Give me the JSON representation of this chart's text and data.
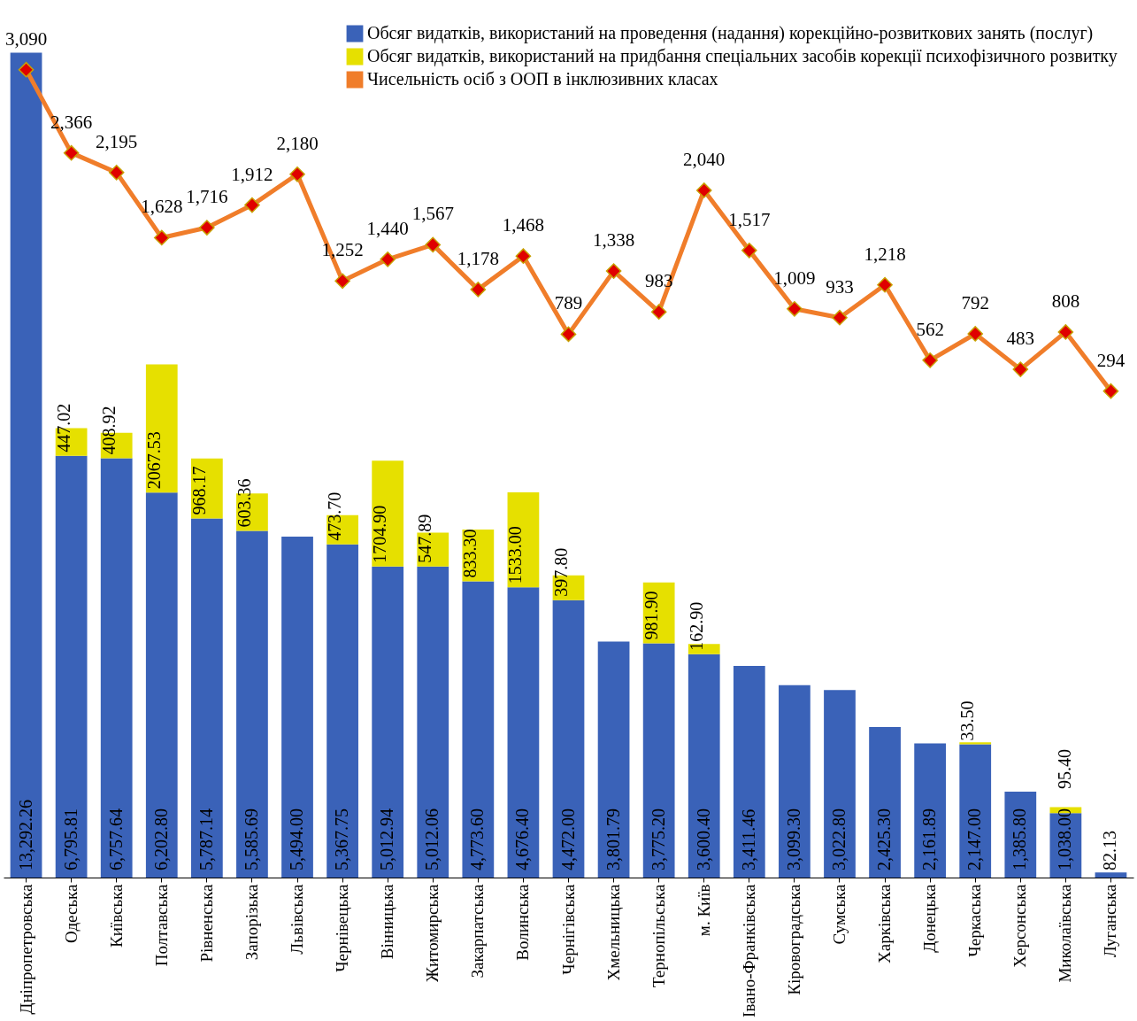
{
  "chart_data": {
    "type": "bar",
    "stacked": true,
    "tick_labels": "x",
    "legend": "top right",
    "marker": "diamond",
    "grid": false,
    "categories": [
      "Дніпропетровська",
      "Одеська",
      "Київська",
      "Полтавська",
      "Рівненська",
      "Запорізька",
      "Львівська",
      "Чернівецька",
      "Вінницька",
      "Житомирська",
      "Закарпатська",
      "Волинська",
      "Чернігівська",
      "Хмельницька",
      "Тернопільська",
      "м. Київ",
      "Івано-Франківська",
      "Кіровоградська",
      "Сумська",
      "Харківська",
      "Донецька",
      "Черкаська",
      "Херсонська",
      "Миколаївська",
      "Луганська"
    ],
    "series": [
      {
        "name": "Обсяг видатків, використаний на проведення (надання) корекційно-розвиткових занять (послуг)",
        "color": "#3a62b8",
        "values": [
          13292.26,
          6795.81,
          6757.64,
          6202.8,
          5787.14,
          5585.69,
          5494.0,
          5367.75,
          5012.94,
          5012.06,
          4773.6,
          4676.4,
          4472.0,
          3801.79,
          3775.2,
          3600.4,
          3411.46,
          3099.3,
          3022.8,
          2425.3,
          2161.89,
          2147.0,
          1385.8,
          1038.0,
          82.13
        ],
        "value_labels": [
          "13,292.26",
          "6,795.81",
          "6,757.64",
          "6,202.80",
          "5,787.14",
          "5,585.69",
          "5,494.00",
          "5,367.75",
          "5,012.94",
          "5,012.06",
          "4,773.60",
          "4,676.40",
          "4,472.00",
          "3,801.79",
          "3,775.20",
          "3,600.40",
          "3,411.46",
          "3,099.30",
          "3,022.80",
          "2,425.30",
          "2,161.89",
          "2,147.00",
          "1,385.80",
          "1,038.00",
          "82.13"
        ]
      },
      {
        "name": "Обсяг видатків, використаний на придбання спеціальних засобів корекції психофізичного розвитку",
        "color": "#e6e000",
        "values": [
          null,
          447.02,
          408.92,
          2067.53,
          968.17,
          603.36,
          null,
          473.7,
          1704.9,
          547.89,
          833.3,
          1533.0,
          397.8,
          null,
          981.9,
          162.9,
          null,
          null,
          null,
          null,
          null,
          33.5,
          null,
          95.4,
          null
        ],
        "value_labels": [
          null,
          "447.02",
          "408.92",
          "2067.53",
          "968.17",
          "603.36",
          null,
          "473.70",
          "1704.90",
          "547.89",
          "833.30",
          "1533.00",
          "397.80",
          null,
          "981.90",
          "162.90",
          null,
          null,
          null,
          null,
          null,
          "33.50",
          null,
          "95.40",
          null
        ]
      },
      {
        "name": "Чисельність осіб з ООП в інклюзивних класах",
        "type": "line",
        "axis": "y2",
        "color": "#f07d2a",
        "values": [
          3090,
          2366,
          2195,
          1628,
          1716,
          1912,
          2180,
          1252,
          1440,
          1567,
          1178,
          1468,
          789,
          1338,
          983,
          2040,
          1517,
          1009,
          933,
          1218,
          562,
          792,
          483,
          808,
          294
        ],
        "value_labels": [
          "3,090",
          "2,366",
          "2,195",
          "1,628",
          "1,716",
          "1,912",
          "2,180",
          "1,252",
          "1,440",
          "1,567",
          "1,178",
          "1,468",
          "789",
          "1,338",
          "983",
          "2,040",
          "1,517",
          "1,009",
          "933",
          "1,218",
          "562",
          "792",
          "483",
          "808",
          "294"
        ]
      }
    ]
  }
}
